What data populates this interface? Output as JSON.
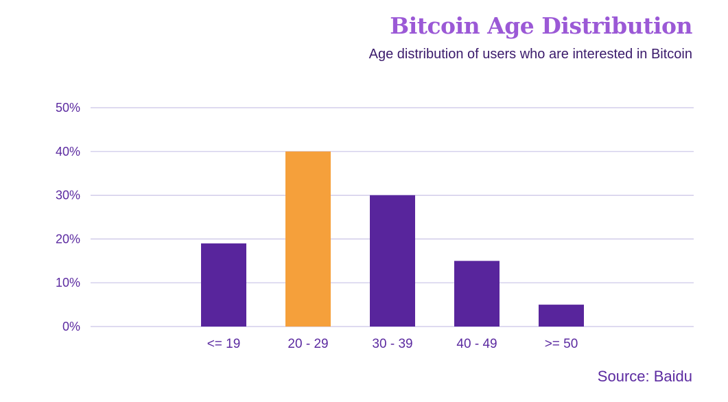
{
  "colors": {
    "bar_default": "#58259c",
    "bar_highlight": "#f5a03b",
    "grid": "#c9c3e6",
    "tick_text": "#5b2aa0",
    "title": "#9b59d6"
  },
  "chart_data": {
    "type": "bar",
    "title": "Bitcoin Age Distribution",
    "subtitle": "Age distribution of users who are interested in Bitcoin",
    "source": "Source: Baidu",
    "categories": [
      "<= 19",
      "20 - 29",
      "30 - 39",
      "40 - 49",
      ">= 50"
    ],
    "values": [
      19,
      40,
      30,
      15,
      5
    ],
    "highlight_index": 1,
    "y_unit": "%",
    "ylim": [
      0,
      50
    ],
    "yticks": [
      0,
      10,
      20,
      30,
      40,
      50
    ],
    "ytick_labels": [
      "0%",
      "10%",
      "20%",
      "30%",
      "40%",
      "50%"
    ],
    "grid": true,
    "legend": "none"
  }
}
